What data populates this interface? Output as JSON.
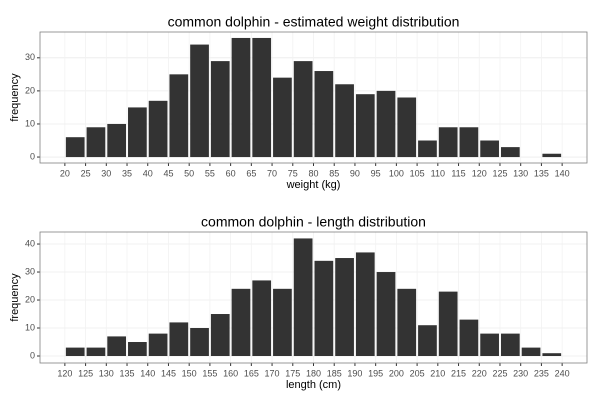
{
  "chart_data": [
    {
      "type": "histogram",
      "title": "common dolphin - estimated weight distribution",
      "xlabel": "weight (kg)",
      "ylabel": "frequency",
      "bins": [
        20,
        25,
        30,
        35,
        40,
        45,
        50,
        55,
        60,
        65,
        70,
        75,
        80,
        85,
        90,
        95,
        100,
        105,
        110,
        115,
        120,
        125,
        130,
        135,
        140
      ],
      "values": [
        6,
        9,
        10,
        15,
        17,
        25,
        34,
        29,
        36,
        36,
        24,
        29,
        26,
        22,
        19,
        20,
        18,
        5,
        9,
        9,
        5,
        3,
        0,
        1
      ],
      "color": "#333333",
      "xlim": [
        14,
        146
      ],
      "ylim": [
        -1.8,
        37.8
      ],
      "xticks": [
        20,
        25,
        30,
        35,
        40,
        45,
        50,
        55,
        60,
        65,
        70,
        75,
        80,
        85,
        90,
        95,
        100,
        105,
        110,
        115,
        120,
        125,
        130,
        135,
        140
      ],
      "yticks": [
        0,
        10,
        20,
        30
      ],
      "grid": true
    },
    {
      "type": "histogram",
      "title": "common dolphin - length distribution",
      "xlabel": "length (cm)",
      "ylabel": "frequency",
      "bins": [
        120,
        125,
        130,
        135,
        140,
        145,
        150,
        155,
        160,
        165,
        170,
        175,
        180,
        185,
        190,
        195,
        200,
        205,
        210,
        215,
        220,
        225,
        230,
        235,
        240
      ],
      "values": [
        3,
        3,
        7,
        5,
        8,
        12,
        10,
        15,
        24,
        27,
        24,
        42,
        34,
        35,
        37,
        30,
        24,
        11,
        23,
        13,
        8,
        8,
        3,
        1
      ],
      "color": "#333333",
      "xlim": [
        114,
        246
      ],
      "ylim": [
        -2.5,
        44.3
      ],
      "xticks": [
        120,
        125,
        130,
        135,
        140,
        145,
        150,
        155,
        160,
        165,
        170,
        175,
        180,
        185,
        190,
        195,
        200,
        205,
        210,
        215,
        220,
        225,
        230,
        235,
        240
      ],
      "yticks": [
        0,
        10,
        20,
        30,
        40
      ],
      "grid": true
    }
  ]
}
